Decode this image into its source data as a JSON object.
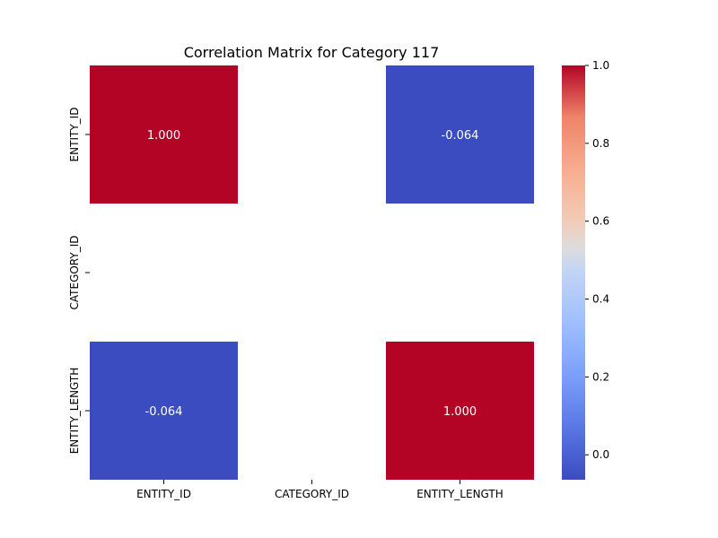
{
  "chart_data": {
    "type": "heatmap",
    "title": "Correlation Matrix for Category 117",
    "x_labels": [
      "ENTITY_ID",
      "CATEGORY_ID",
      "ENTITY_LENGTH"
    ],
    "y_labels": [
      "ENTITY_ID",
      "CATEGORY_ID",
      "ENTITY_LENGTH"
    ],
    "matrix": [
      [
        1.0,
        null,
        -0.064
      ],
      [
        null,
        null,
        null
      ],
      [
        -0.064,
        null,
        1.0
      ]
    ],
    "cell_labels": [
      [
        "1.000",
        "",
        "-0.064"
      ],
      [
        "",
        "",
        ""
      ],
      [
        "-0.064",
        "",
        "1.000"
      ]
    ],
    "colormap": "coolwarm",
    "vmin": -0.064,
    "vmax": 1.0,
    "colorbar_ticks": [
      0.0,
      0.2,
      0.4,
      0.6,
      0.8,
      1.0
    ],
    "colorbar_tick_labels": [
      "0.0",
      "0.2",
      "0.4",
      "0.6",
      "0.8",
      "1.0"
    ]
  }
}
